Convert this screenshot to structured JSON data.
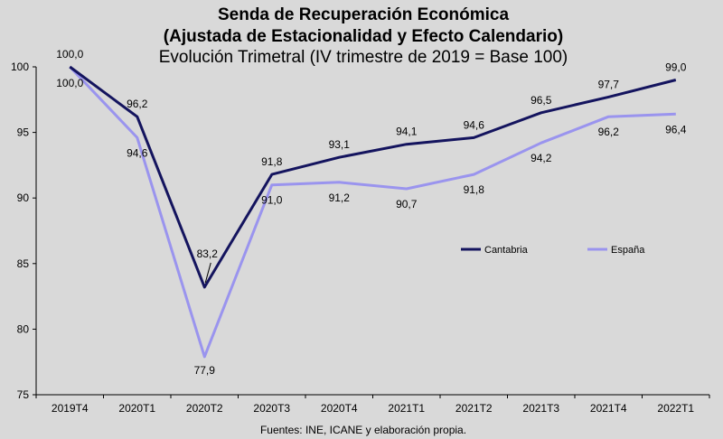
{
  "chart_data": {
    "type": "line",
    "title": "Senda de Recuperación Económica",
    "title_line2": "(Ajustada de Estacionalidad y Efecto Calendario)",
    "subtitle": "Evolución Trimetral  (IV trimestre de 2019 = Base 100)",
    "source": "Fuentes: INE, ICANE y elaboración propia.",
    "categories": [
      "2019T4",
      "2020T1",
      "2020T2",
      "2020T3",
      "2020T4",
      "2021T1",
      "2021T2",
      "2021T3",
      "2021T4",
      "2022T1"
    ],
    "ylim": [
      75,
      100
    ],
    "yticks": [
      75,
      80,
      85,
      90,
      95,
      100
    ],
    "grid": false,
    "legend_position": "right",
    "series": [
      {
        "name": "Cantabria",
        "color": "#14145e",
        "values": [
          100,
          96.2,
          83.2,
          91.8,
          93.1,
          94.1,
          94.6,
          96.5,
          97.7,
          99.0
        ],
        "labels": [
          "100,0",
          "96,2",
          "83,2",
          "91,8",
          "93,1",
          "94,1",
          "94,6",
          "96,5",
          "97,7",
          "99,0"
        ]
      },
      {
        "name": "España",
        "color": "#9a94ee",
        "values": [
          100,
          94.6,
          77.9,
          91.0,
          91.2,
          90.7,
          91.8,
          94.2,
          96.2,
          96.4
        ],
        "labels": [
          "100,0",
          "94,6",
          "77,9",
          "91,0",
          "91,2",
          "90,7",
          "91,8",
          "94,2",
          "96,2",
          "96,4"
        ]
      }
    ]
  }
}
